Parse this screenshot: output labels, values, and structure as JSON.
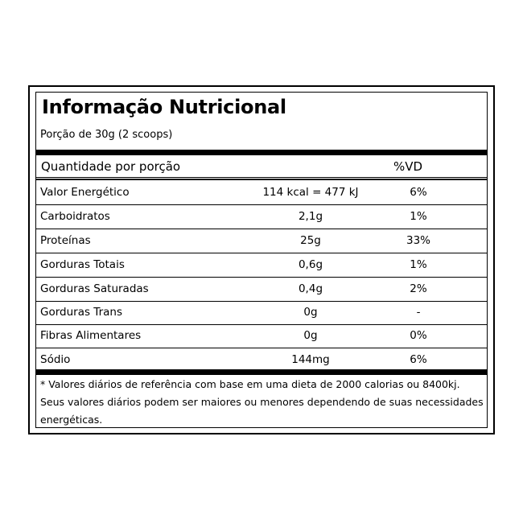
{
  "title": "Informação Nutricional",
  "portion": "Porção de 30g (2 scoops)",
  "header": {
    "quantity_label": "Quantidade por porção",
    "vd_label": "%VD"
  },
  "rows": [
    {
      "name": "Valor Energético",
      "amount": "114 kcal = 477 kJ",
      "vd": "6%"
    },
    {
      "name": "Carboidratos",
      "amount": "2,1g",
      "vd": "1%"
    },
    {
      "name": "Proteínas",
      "amount": "25g",
      "vd": "33%"
    },
    {
      "name": "Gorduras Totais",
      "amount": "0,6g",
      "vd": "1%"
    },
    {
      "name": "Gorduras Saturadas",
      "amount": "0,4g",
      "vd": "2%"
    },
    {
      "name": "Gorduras Trans",
      "amount": "0g",
      "vd": "-"
    },
    {
      "name": "Fibras Alimentares",
      "amount": "0g",
      "vd": "0%"
    },
    {
      "name": "Sódio",
      "amount": "144mg",
      "vd": "6%"
    }
  ],
  "footnote": {
    "line1": "* Valores diários de referência com base em uma dieta de 2000 calorias ou 8400kj.",
    "line2": "Seus valores diários podem ser maiores ou menores dependendo de suas necessidades",
    "line3": "energéticas."
  }
}
